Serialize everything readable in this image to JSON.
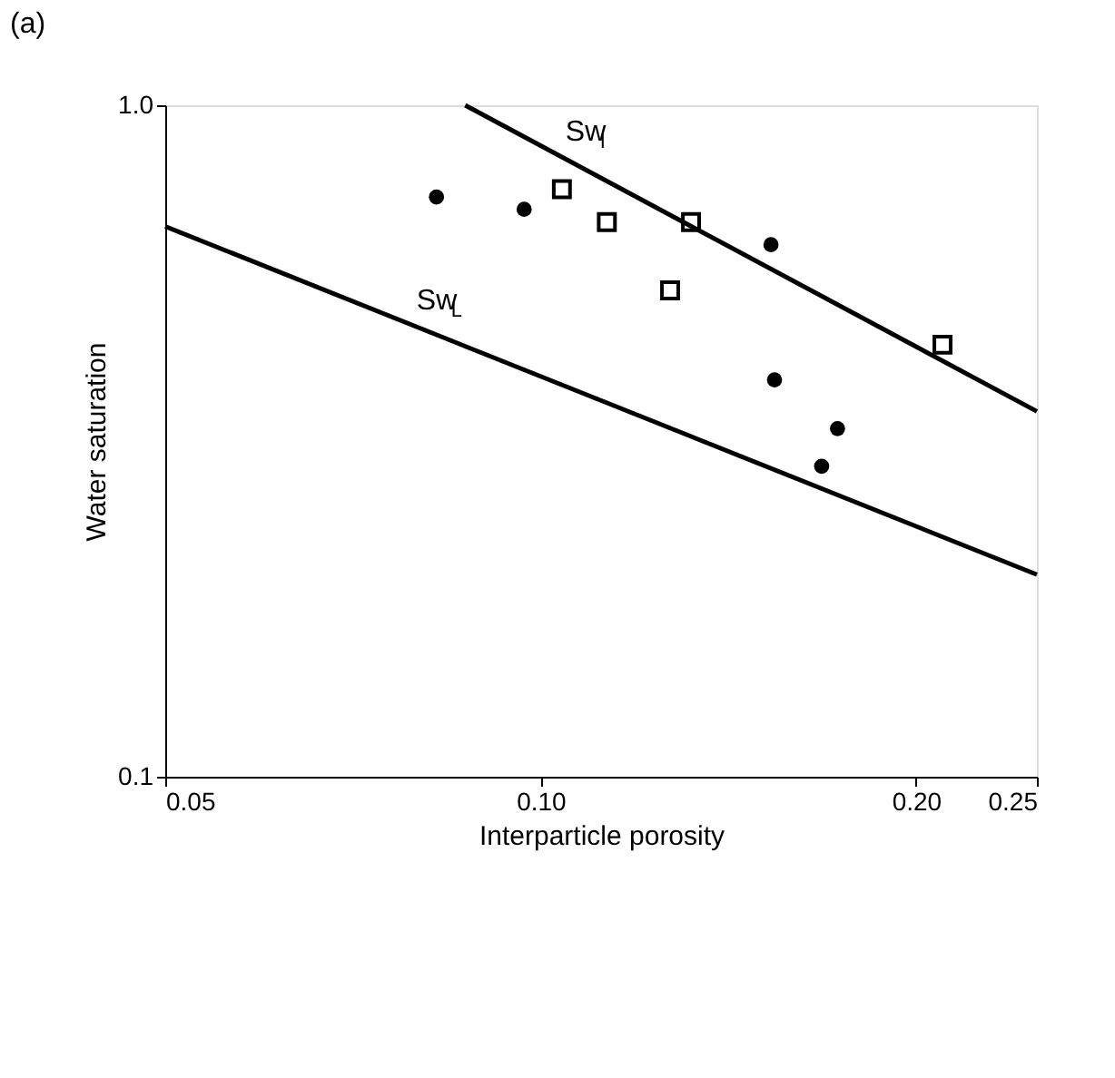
{
  "chart_data": {
    "type": "scatter",
    "title": "(a)",
    "xlabel": "Interparticle porosity",
    "ylabel": "Water saturation",
    "log": "xy",
    "grid": false,
    "xlim": [
      0.05,
      0.25
    ],
    "xticks": [
      0.05,
      {
        "value": 0.1,
        "label": "0.10"
      },
      {
        "value": 0.2,
        "label": "0.20"
      },
      0.25
    ],
    "ylim": [
      0.1,
      1.0
    ],
    "yticks": [
      0.1,
      {
        "value": 1.0,
        "label": "1.0"
      }
    ],
    "series": [
      {
        "marker": "circle",
        "color": "#000000",
        "x": [
          0.0825,
          0.097,
          0.153,
          0.154,
          0.168,
          0.173
        ],
        "values": [
          0.73,
          0.7,
          0.62,
          0.39,
          0.29,
          0.33
        ]
      },
      {
        "marker": "square",
        "color": "#000000",
        "x": [
          0.104,
          0.113,
          0.132,
          0.127,
          0.21
        ],
        "values": [
          0.75,
          0.67,
          0.67,
          0.53,
          0.44
        ]
      },
      {
        "type": "line",
        "marker": "none",
        "line_style": "solid",
        "color": "#000000",
        "x": [
          0.05,
          0.25
        ],
        "values": [
          0.66,
          0.2
        ]
      },
      {
        "type": "line",
        "marker": "none",
        "line_style": "solid",
        "color": "#000000",
        "x": [
          0.087,
          0.25
        ],
        "values": [
          1.0,
          0.35
        ]
      }
    ],
    "annotations": [
      {
        "text": "Sw$_{L}$",
        "x": 0.079,
        "y": 0.47
      },
      {
        "text": "Sw$_{I}$",
        "x": 0.104,
        "y": 0.837
      }
    ]
  }
}
